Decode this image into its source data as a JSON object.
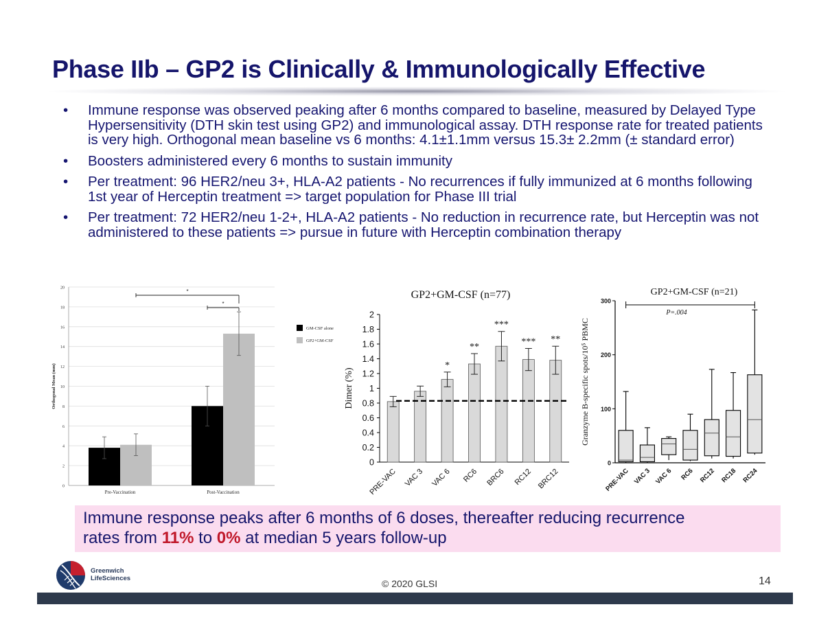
{
  "title": "Phase IIb – GP2 is Clinically & Immunologically Effective",
  "bullets": [
    "Immune response was observed peaking after 6 months compared to baseline, measured by Delayed Type Hypersensitivity (DTH skin test using GP2) and immunological assay. DTH response rate for treated patients is very high. Orthogonal mean baseline vs 6 months: 4.1±1.1mm versus 15.3± 2.2mm (± standard error)",
    "Boosters administered every 6 months to sustain immunity",
    "Per treatment: 96 HER2/neu 3+, HLA-A2 patients - No recurrences if fully immunized at 6 months following 1st year of Herceptin treatment => target population for Phase III trial",
    "Per treatment: 72 HER2/neu 1-2+, HLA-A2 patients - No reduction in recurrence rate, but Herceptin was not administered to these patients => pursue in future with Herceptin combination therapy"
  ],
  "chart_data": [
    {
      "type": "bar",
      "title": "",
      "xlabel": "",
      "ylabel": "Orthogonal Mean (mm)",
      "ylim": [
        0,
        20
      ],
      "yticks": [
        "0",
        "2",
        "4",
        "6",
        "8",
        "10",
        "12",
        "14",
        "16",
        "18",
        "20"
      ],
      "categories": [
        "Pre-Vaccination",
        "Post-Vaccination"
      ],
      "series": [
        {
          "name": "GM-CSF alone",
          "color": "#000000",
          "values": [
            3.8,
            8.0
          ],
          "errors": [
            1.1,
            2.0
          ]
        },
        {
          "name": "GP2+GM-CSF",
          "color": "#bfbfbf",
          "values": [
            4.1,
            15.3
          ],
          "errors": [
            1.1,
            2.2
          ]
        }
      ],
      "significance": [
        "*",
        "*"
      ]
    },
    {
      "type": "bar",
      "title": "GP2+GM-CSF (n=77)",
      "xlabel": "",
      "ylabel": "Dimer (%)",
      "ylim": [
        0,
        2
      ],
      "yticks": [
        "0",
        "0.2",
        "0.4",
        "0.6",
        "0.8",
        "1",
        "1.2",
        "1.4",
        "1.6",
        "1.8",
        "2"
      ],
      "categories": [
        "PRE-VAC",
        "VAC 3",
        "VAC 6",
        "RC6",
        "BRC6",
        "RC12",
        "BRC12"
      ],
      "values": [
        0.82,
        0.96,
        1.12,
        1.33,
        1.57,
        1.39,
        1.38
      ],
      "errors": [
        0.07,
        0.07,
        0.1,
        0.14,
        0.2,
        0.15,
        0.19
      ],
      "significance": [
        "",
        "",
        "*",
        "**",
        "***",
        "***",
        "**"
      ],
      "baseline": 0.83
    },
    {
      "type": "box",
      "title": "GP2+GM-CSF (n=21)",
      "xlabel": "",
      "ylabel": "Granzyme B-specific spots/10⁵ PBMC",
      "ylim": [
        0,
        300
      ],
      "yticks": [
        "0",
        "100",
        "200",
        "300"
      ],
      "annotation": "P=.004",
      "categories": [
        "PRE-VAC",
        "VAC 3",
        "VAC 6",
        "RC6",
        "RC12",
        "RC18",
        "RC24"
      ],
      "boxes": [
        {
          "min": 0,
          "q1": 2,
          "median": 5,
          "q3": 60,
          "max": 132
        },
        {
          "min": 0,
          "q1": 2,
          "median": 10,
          "q3": 33,
          "max": 65
        },
        {
          "min": 5,
          "q1": 15,
          "median": 35,
          "q3": 45,
          "max": 48
        },
        {
          "min": 3,
          "q1": 5,
          "median": 25,
          "q3": 60,
          "max": 90
        },
        {
          "min": 8,
          "q1": 13,
          "median": 55,
          "q3": 80,
          "max": 173
        },
        {
          "min": 8,
          "q1": 12,
          "median": 48,
          "q3": 97,
          "max": 167
        },
        {
          "min": 15,
          "q1": 18,
          "median": 80,
          "q3": 163,
          "max": 283
        }
      ]
    }
  ],
  "callout": {
    "line1": "Immune response peaks after 6 months of 6 doses, thereafter reducing recurrence",
    "line2_pre": "rates from ",
    "from_value": "11%",
    "line2_mid": " to ",
    "to_value": "0%",
    "line2_post": " at median 5 years follow-up"
  },
  "footer": {
    "logo_line1": "Greenwich",
    "logo_line2": "LifeSciences",
    "copyright": "© 2020 GLSI",
    "page": "14"
  },
  "colors": {
    "title": "#15156b",
    "callout_bg": "#fbdcef",
    "highlight": "#c0182a",
    "footer_bar": "#2e3a4c"
  }
}
